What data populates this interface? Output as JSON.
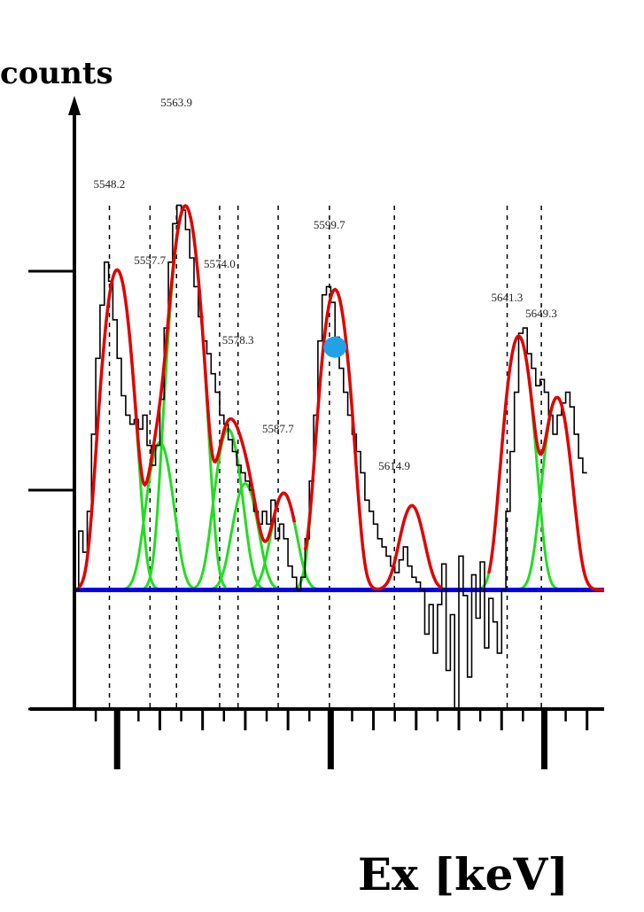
{
  "chart_data": {
    "type": "line",
    "title": "",
    "xlabel": "Ex [keV]",
    "ylabel": "counts",
    "y_scale": "log",
    "xlim": [
      5540,
      5664
    ],
    "ylim": [
      1,
      300
    ],
    "x_ticks": [
      5550,
      5600,
      5650
    ],
    "y_ticks": [
      1,
      10,
      100
    ],
    "grid": false,
    "legend": "none",
    "colors": {
      "data_histogram": "#000000",
      "total_fit": "#e00000",
      "component_peaks": "#22dd22",
      "background": "#0000e6",
      "marker": "#1fa3e6"
    },
    "peak_labels": [
      {
        "energy": 5548.2,
        "text": "5548.2"
      },
      {
        "energy": 5557.7,
        "text": "5557.7"
      },
      {
        "energy": 5563.9,
        "text": "5563.9"
      },
      {
        "energy": 5574.0,
        "text": "5574.0"
      },
      {
        "energy": 5578.3,
        "text": "5578.3"
      },
      {
        "energy": 5587.7,
        "text": "5587.7"
      },
      {
        "energy": 5599.7,
        "text": "5599.7"
      },
      {
        "energy": 5614.9,
        "text": "5614.9"
      },
      {
        "energy": 5641.3,
        "text": "5641.3"
      },
      {
        "energy": 5649.3,
        "text": "5649.3"
      }
    ],
    "background_level": 3.5,
    "components": [
      {
        "center": 5550.0,
        "height": 98
      },
      {
        "center": 5560.0,
        "height": 13
      },
      {
        "center": 5566.0,
        "height": 195
      },
      {
        "center": 5576.0,
        "height": 15.5
      },
      {
        "center": 5580.0,
        "height": 7.2
      },
      {
        "center": 5589.0,
        "height": 6.2
      },
      {
        "center": 5601.0,
        "height": 79
      },
      {
        "center": 5619.0,
        "height": 5.0
      },
      {
        "center": 5644.0,
        "height": 47
      },
      {
        "center": 5653.0,
        "height": 23
      }
    ],
    "marker_point": {
      "x": 5601.0,
      "y": 45
    },
    "histogram": {
      "bin_width": 1,
      "x_start": 5540,
      "values": [
        3.5,
        6.5,
        5.2,
        8,
        18,
        40,
        70,
        110,
        90,
        60,
        40,
        27,
        22,
        20,
        21,
        19,
        22,
        16,
        13,
        16,
        26,
        55,
        110,
        165,
        200,
        190,
        155,
        115,
        85,
        62,
        48,
        42,
        34,
        28,
        22,
        20,
        17,
        15,
        13,
        12,
        11,
        10,
        8,
        7,
        8,
        7,
        9,
        6,
        7,
        6,
        4.5,
        4,
        3.5,
        4,
        6,
        11,
        22,
        48,
        78,
        85,
        72,
        50,
        36,
        28,
        22,
        18,
        15,
        12,
        9,
        8,
        7,
        6,
        5.5,
        5,
        4.5,
        4.2,
        4.8,
        5.5,
        4.5,
        4,
        3.8,
        3.5,
        2.2,
        3,
        1.8,
        3,
        4.6,
        1.5,
        2.7,
        1,
        5,
        3.3,
        1.4,
        4.1,
        2.6,
        4.7,
        1.9,
        3.2,
        2.5,
        1.8,
        3.5,
        8,
        15,
        28,
        52,
        55,
        42,
        36,
        30,
        32,
        28,
        22,
        18,
        22,
        25,
        28,
        24,
        18,
        14,
        12
      ]
    }
  }
}
